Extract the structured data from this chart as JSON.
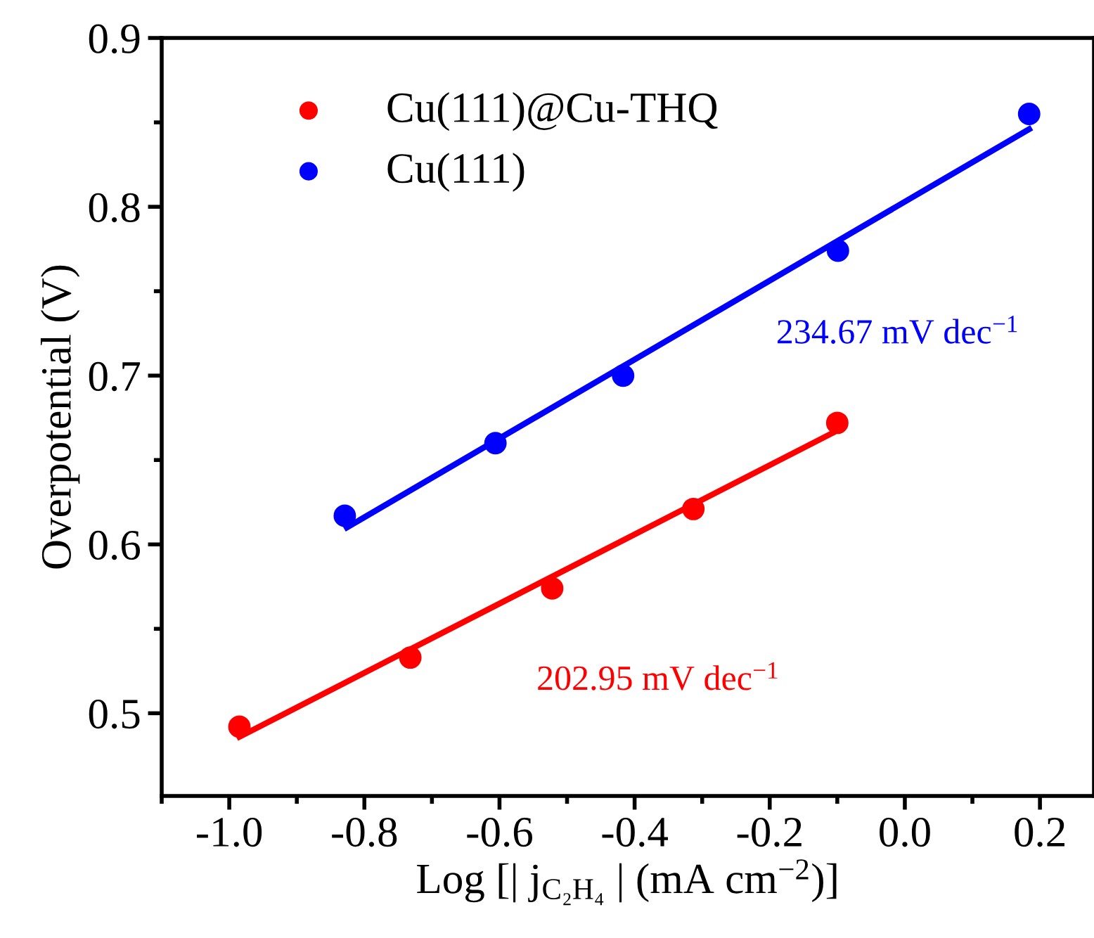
{
  "chart_data": {
    "type": "scatter",
    "xlabel": "Log [| j$_{C₂H₄}$ | (mA cm$^{−2}$)]",
    "ylabel": "Overpotential (V)",
    "xlim": [
      -1.1,
      0.28
    ],
    "xticks": [
      {
        "value": -1.0,
        "label": "-1.0"
      },
      {
        "value": -0.8,
        "label": "-0.8"
      },
      {
        "value": -0.6,
        "label": "-0.6"
      },
      {
        "value": -0.4,
        "label": "-0.4"
      },
      {
        "value": -0.2,
        "label": "-0.2"
      },
      {
        "value": 0.0,
        "label": "0.0"
      },
      {
        "value": 0.2,
        "label": "0.2"
      }
    ],
    "ylim": [
      0.451,
      0.9
    ],
    "yticks": [
      0.5,
      0.6,
      0.7,
      0.8,
      0.9
    ],
    "grid": false,
    "legend": "top left",
    "series": [
      {
        "name": "Cu(111)@Cu-THQ",
        "color": "#ff0000",
        "marker": "circle",
        "x": [
          -0.985,
          -0.732,
          -0.522,
          -0.313,
          -0.1
        ],
        "values": [
          0.492,
          0.533,
          0.574,
          0.621,
          0.672
        ]
      },
      {
        "name": "Cu(111)",
        "color": "#0000ff",
        "marker": "circle",
        "x": [
          -0.829,
          -0.606,
          -0.417,
          -0.099,
          0.184
        ],
        "values": [
          0.617,
          0.66,
          0.7,
          0.774,
          0.855
        ]
      },
      {
        "type": "line",
        "color": "#ff0000",
        "marker": "none",
        "x": [
          -0.985,
          -0.107
        ],
        "values": [
          0.486,
          0.666
        ]
      },
      {
        "type": "line",
        "color": "#0000ff",
        "marker": "none",
        "x": [
          -0.826,
          0.184
        ],
        "values": [
          0.61,
          0.846
        ]
      }
    ],
    "annotations": [
      "202.95 mV dec$^{−1}$",
      "234.67 mV dec$^{−1}$"
    ]
  }
}
